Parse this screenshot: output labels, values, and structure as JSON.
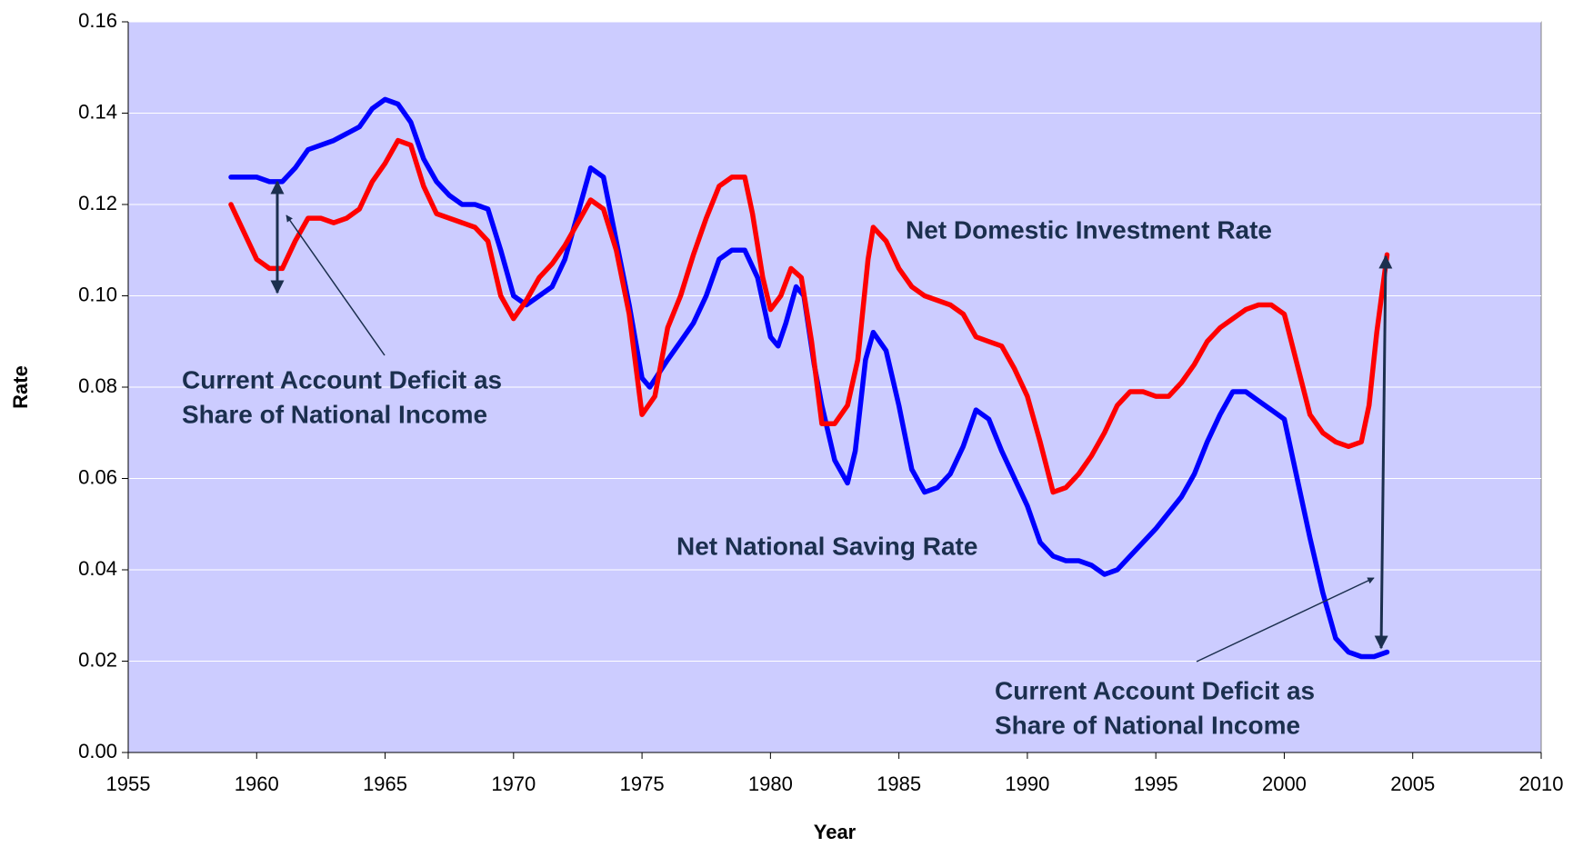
{
  "chart_data": {
    "type": "line",
    "xlabel": "Year",
    "ylabel": "Rate",
    "xlim": [
      1955,
      2010
    ],
    "xticks": [
      1955,
      1960,
      1965,
      1970,
      1975,
      1980,
      1985,
      1990,
      1995,
      2000,
      2005,
      2010
    ],
    "ylim": [
      0,
      0.16
    ],
    "yticks": [
      {
        "value": 0,
        "label": "0.00"
      },
      {
        "value": 0.02,
        "label": "0.02"
      },
      {
        "value": 0.04,
        "label": "0.04"
      },
      {
        "value": 0.06,
        "label": "0.06"
      },
      {
        "value": 0.08,
        "label": "0.08"
      },
      {
        "value": 0.1,
        "label": "0.10"
      },
      {
        "value": 0.12,
        "label": "0.12"
      },
      {
        "value": 0.14,
        "label": "0.14"
      },
      {
        "value": 0.16,
        "label": "0.16"
      }
    ],
    "grid": true,
    "background": "#ccccff",
    "series": [
      {
        "name": "Net National Saving Rate",
        "color": "#0000ff",
        "x": [
          1959,
          1960,
          1960.5,
          1961,
          1961.5,
          1962,
          1963,
          1964,
          1964.5,
          1965,
          1965.5,
          1966,
          1966.5,
          1967,
          1967.5,
          1968,
          1968.5,
          1969,
          1969.5,
          1970,
          1970.5,
          1971,
          1971.5,
          1972,
          1972.5,
          1973,
          1973.5,
          1974,
          1974.5,
          1975,
          1975.3,
          1976,
          1976.5,
          1977,
          1977.5,
          1978,
          1978.5,
          1979,
          1979.5,
          1980,
          1980.3,
          1980.6,
          1981,
          1981.3,
          1981.7,
          1982,
          1982.5,
          1983,
          1983.3,
          1983.7,
          1984,
          1984.5,
          1985,
          1985.5,
          1986,
          1986.5,
          1987,
          1987.5,
          1988,
          1988.5,
          1989,
          1989.5,
          1990,
          1990.5,
          1991,
          1991.5,
          1992,
          1992.5,
          1993,
          1993.5,
          1994,
          1995,
          1996,
          1996.5,
          1997,
          1997.5,
          1998,
          1998.5,
          1999,
          1999.5,
          2000,
          2000.5,
          2001,
          2001.5,
          2002,
          2002.5,
          2003,
          2003.5,
          2004
        ],
        "values": [
          0.126,
          0.126,
          0.125,
          0.125,
          0.128,
          0.132,
          0.134,
          0.137,
          0.141,
          0.143,
          0.142,
          0.138,
          0.13,
          0.125,
          0.122,
          0.12,
          0.12,
          0.119,
          0.11,
          0.1,
          0.098,
          0.1,
          0.102,
          0.108,
          0.118,
          0.128,
          0.126,
          0.112,
          0.098,
          0.082,
          0.08,
          0.086,
          0.09,
          0.094,
          0.1,
          0.108,
          0.11,
          0.11,
          0.104,
          0.091,
          0.089,
          0.094,
          0.102,
          0.1,
          0.085,
          0.076,
          0.064,
          0.059,
          0.066,
          0.086,
          0.092,
          0.088,
          0.076,
          0.062,
          0.057,
          0.058,
          0.061,
          0.067,
          0.075,
          0.073,
          0.066,
          0.06,
          0.054,
          0.046,
          0.043,
          0.042,
          0.042,
          0.041,
          0.039,
          0.04,
          0.043,
          0.049,
          0.056,
          0.061,
          0.068,
          0.074,
          0.079,
          0.079,
          0.077,
          0.075,
          0.073,
          0.06,
          0.047,
          0.035,
          0.025,
          0.022,
          0.021,
          0.021,
          0.022
        ]
      },
      {
        "name": "Net Domestic Investment Rate",
        "color": "#ff0000",
        "x": [
          1959,
          1959.5,
          1960,
          1960.5,
          1961,
          1961.5,
          1962,
          1962.5,
          1963,
          1963.5,
          1964,
          1964.5,
          1965,
          1965.5,
          1966,
          1966.5,
          1967,
          1967.5,
          1968,
          1968.5,
          1969,
          1969.5,
          1970,
          1970.5,
          1971,
          1971.5,
          1972,
          1972.5,
          1973,
          1973.5,
          1974,
          1974.5,
          1975,
          1975.5,
          1976,
          1976.5,
          1977,
          1977.5,
          1978,
          1978.5,
          1979,
          1979.3,
          1979.7,
          1980,
          1980.4,
          1980.8,
          1981.2,
          1981.6,
          1982,
          1982.5,
          1983,
          1983.4,
          1983.8,
          1984,
          1984.5,
          1985,
          1985.5,
          1986,
          1987,
          1987.5,
          1988,
          1988.5,
          1989,
          1989.5,
          1990,
          1990.5,
          1991,
          1991.5,
          1992,
          1992.5,
          1993,
          1993.5,
          1994,
          1994.5,
          1995,
          1995.5,
          1996,
          1996.5,
          1997,
          1997.5,
          1998,
          1998.5,
          1999,
          1999.5,
          2000,
          2000.5,
          2001,
          2001.5,
          2002,
          2002.5,
          2003,
          2003.3,
          2003.6,
          2004
        ],
        "values": [
          0.12,
          0.114,
          0.108,
          0.106,
          0.106,
          0.112,
          0.117,
          0.117,
          0.116,
          0.117,
          0.119,
          0.125,
          0.129,
          0.134,
          0.133,
          0.124,
          0.118,
          0.117,
          0.116,
          0.115,
          0.112,
          0.1,
          0.095,
          0.099,
          0.104,
          0.107,
          0.111,
          0.116,
          0.121,
          0.119,
          0.11,
          0.096,
          0.074,
          0.078,
          0.093,
          0.1,
          0.109,
          0.117,
          0.124,
          0.126,
          0.126,
          0.118,
          0.104,
          0.097,
          0.1,
          0.106,
          0.104,
          0.09,
          0.072,
          0.072,
          0.076,
          0.086,
          0.108,
          0.115,
          0.112,
          0.106,
          0.102,
          0.1,
          0.098,
          0.096,
          0.091,
          0.09,
          0.089,
          0.084,
          0.078,
          0.068,
          0.057,
          0.058,
          0.061,
          0.065,
          0.07,
          0.076,
          0.079,
          0.079,
          0.078,
          0.078,
          0.081,
          0.085,
          0.09,
          0.093,
          0.095,
          0.097,
          0.098,
          0.098,
          0.096,
          0.085,
          0.074,
          0.07,
          0.068,
          0.067,
          0.068,
          0.076,
          0.092,
          0.109
        ]
      }
    ],
    "annotations": [
      {
        "lines": [
          "Net Domestic Investment Rate"
        ]
      },
      {
        "lines": [
          "Net National Saving Rate"
        ]
      },
      {
        "lines": [
          "Current Account Deficit as",
          "Share of National Income"
        ]
      },
      {
        "lines": [
          "Current Account Deficit as",
          "Share of National Income"
        ]
      }
    ]
  }
}
